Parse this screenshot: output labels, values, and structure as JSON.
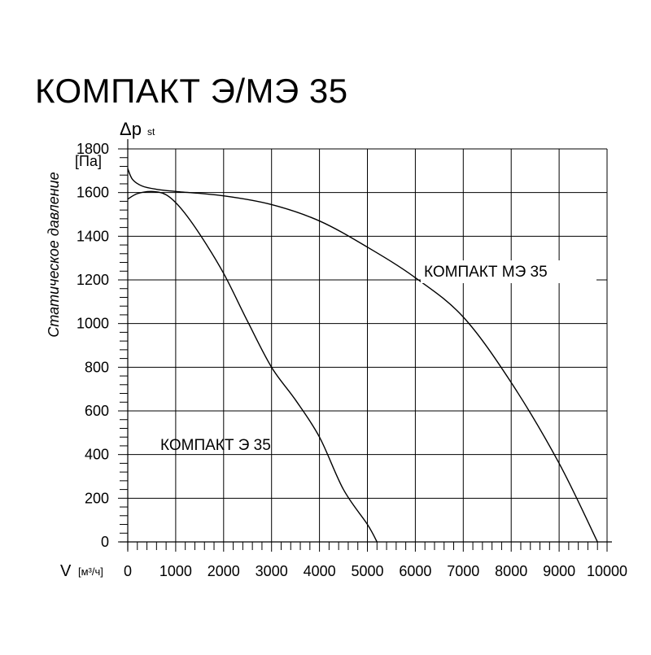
{
  "title": "КОМПАКТ Э/МЭ 35",
  "chart_data": {
    "type": "line",
    "xlabel_symbol": "V",
    "xlabel_unit": "[м³/ч]",
    "ylabel_symbol": "Δp",
    "ylabel_symbol_sub": "st",
    "ylabel_unit": "[Па]",
    "ylabel": "Статическое давление",
    "xlim": [
      0,
      10000
    ],
    "ylim": [
      0,
      1800
    ],
    "x_ticks": [
      0,
      1000,
      2000,
      3000,
      4000,
      5000,
      6000,
      7000,
      8000,
      9000,
      10000
    ],
    "x_tick_labels": [
      "0",
      "1000",
      "2000",
      "3000",
      "4000",
      "5000",
      "6000",
      "7000",
      "8000",
      "9000",
      "10000"
    ],
    "y_ticks": [
      0,
      200,
      400,
      600,
      800,
      1000,
      1200,
      1400,
      1600,
      1800
    ],
    "y_tick_labels": [
      "0",
      "200",
      "400",
      "600",
      "800",
      "1000",
      "1200",
      "1400",
      "1600",
      "1800"
    ],
    "grid": true,
    "series": [
      {
        "name": "КОМПАКТ МЭ 35",
        "x": [
          0,
          100,
          300,
          600,
          1000,
          2000,
          3000,
          4000,
          5000,
          6000,
          7000,
          8000,
          9000,
          9800
        ],
        "y": [
          1710,
          1660,
          1630,
          1615,
          1605,
          1585,
          1545,
          1470,
          1350,
          1210,
          1030,
          730,
          360,
          0
        ]
      },
      {
        "name": "КОМПАКТ Э 35",
        "x": [
          0,
          200,
          500,
          800,
          1100,
          1500,
          2000,
          2500,
          3000,
          3500,
          4000,
          4500,
          5000,
          5200
        ],
        "y": [
          1570,
          1595,
          1605,
          1590,
          1530,
          1410,
          1230,
          1010,
          800,
          650,
          480,
          240,
          80,
          0
        ]
      }
    ]
  }
}
